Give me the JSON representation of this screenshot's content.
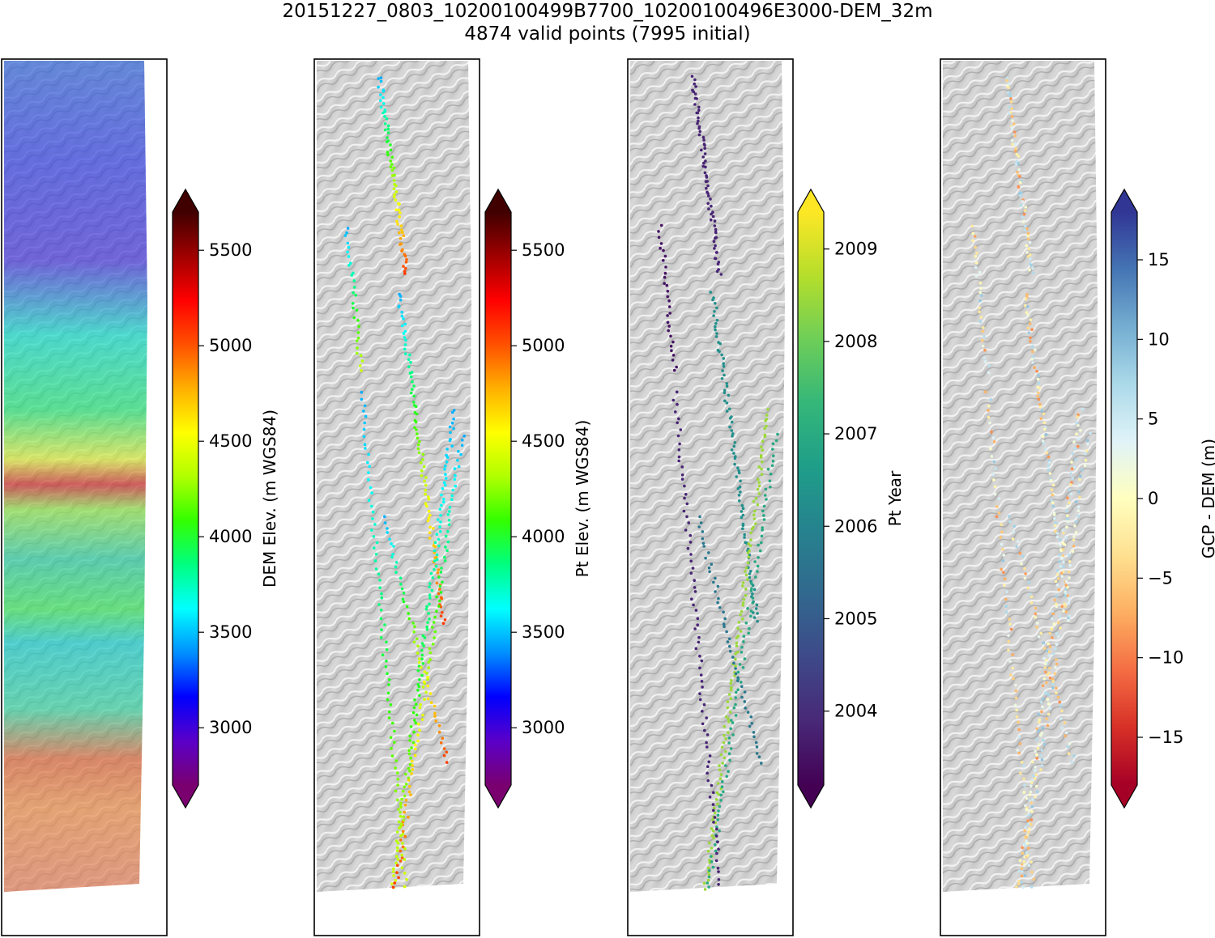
{
  "title": {
    "line1": "20151227_0803_10200100499B7700_10200100496E3000-DEM_32m",
    "line2": "4874 valid points (7995 initial)"
  },
  "chart_data": [
    {
      "type": "heatmap",
      "panel": "dem",
      "colorbar": {
        "label": "DEM Elev. (m WGS84)",
        "colormap": "gist_rainbow",
        "range": [
          2700,
          5700
        ],
        "ticks": [
          3000,
          3500,
          4000,
          4500,
          5000,
          5500
        ],
        "tick_labels": [
          "3000",
          "3500",
          "4000",
          "4500",
          "5000",
          "5500"
        ],
        "extend": "both"
      }
    },
    {
      "type": "scatter",
      "panel": "pt-elev",
      "colorbar": {
        "label": "Pt Elev. (m WGS84)",
        "colormap": "gist_rainbow",
        "range": [
          2700,
          5700
        ],
        "ticks": [
          3000,
          3500,
          4000,
          4500,
          5000,
          5500
        ],
        "tick_labels": [
          "3000",
          "3500",
          "4000",
          "4500",
          "5000",
          "5500"
        ],
        "extend": "both"
      }
    },
    {
      "type": "scatter",
      "panel": "pt-year",
      "colorbar": {
        "label": "Pt Year",
        "colormap": "viridis",
        "range": [
          2003.2,
          2009.4
        ],
        "ticks": [
          2004,
          2005,
          2006,
          2007,
          2008,
          2009
        ],
        "tick_labels": [
          "2004",
          "2005",
          "2006",
          "2007",
          "2008",
          "2009"
        ],
        "extend": "both"
      }
    },
    {
      "type": "scatter",
      "panel": "gcp-dem",
      "colorbar": {
        "label": "GCP - DEM (m)",
        "colormap": "RdYlBu",
        "range": [
          -18,
          18
        ],
        "ticks": [
          -15,
          -10,
          -5,
          0,
          5,
          10,
          15
        ],
        "tick_labels": [
          "−15",
          "−10",
          "−5",
          "0",
          "5",
          "10",
          "15"
        ],
        "extend": "both"
      }
    }
  ],
  "colors": {
    "hillshade_light": "#e6e6e6",
    "hillshade_dark": "#9a9a9a",
    "frame": "#000000"
  }
}
